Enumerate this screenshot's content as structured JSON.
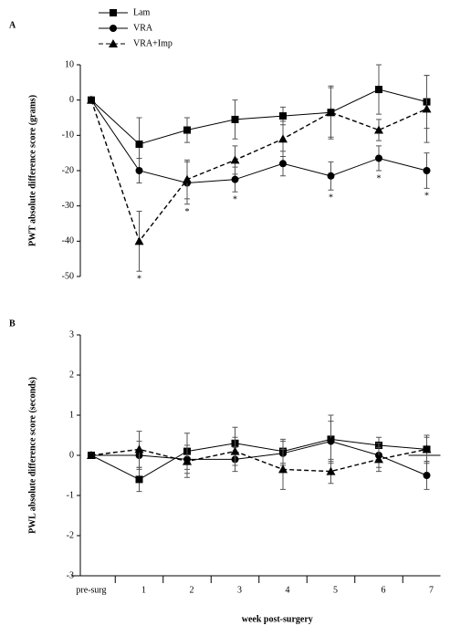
{
  "chart_data": [
    {
      "type": "line",
      "panel_label": "A",
      "y_label": "PWT absolute difference score (grams)",
      "ylim": [
        -50,
        10
      ],
      "yticks": [
        10,
        0,
        -10,
        -20,
        -30,
        -40,
        -50
      ],
      "legend": "top",
      "series": [
        {
          "name": "Lam",
          "color": "#000000",
          "marker": "square",
          "dash": false,
          "values": [
            0,
            -12.5,
            -8.5,
            -5.5,
            -4.5,
            -3.5,
            3,
            -0.5
          ],
          "errors": [
            0,
            7.5,
            3.5,
            5.5,
            2.5,
            7.5,
            7,
            7.5
          ]
        },
        {
          "name": "VRA",
          "color": "#000000",
          "marker": "circle",
          "dash": false,
          "values": [
            0,
            -20,
            -23.5,
            -22.5,
            -18,
            -21.5,
            -16.5,
            -20
          ],
          "errors": [
            0,
            3.5,
            6,
            3.5,
            3.5,
            4,
            3.5,
            5
          ]
        },
        {
          "name": "VRA+Imp",
          "color": "#000000",
          "marker": "triangle",
          "dash": true,
          "values": [
            0,
            -40,
            -22.5,
            -17,
            -11,
            -3.5,
            -8.5,
            -2.5
          ],
          "errors": [
            0,
            8.5,
            5.5,
            4,
            5,
            7,
            3,
            9.5
          ]
        }
      ],
      "annotations": [
        {
          "x": "1",
          "text": "*"
        },
        {
          "x": "2",
          "text": "*"
        },
        {
          "x": "3",
          "text": "*"
        },
        {
          "x": "5",
          "text": "*"
        },
        {
          "x": "6",
          "text": "*"
        },
        {
          "x": "7",
          "text": "*"
        }
      ]
    },
    {
      "type": "line",
      "panel_label": "B",
      "y_label": "PWL absolute difference score (seconds)",
      "x_label": "week post-surgery",
      "categories": [
        "pre-surg",
        "1",
        "2",
        "3",
        "4",
        "5",
        "6",
        "7"
      ],
      "ylim": [
        -3,
        3
      ],
      "yticks": [
        3,
        2,
        1,
        0,
        -1,
        -2,
        -3
      ],
      "series": [
        {
          "color": "#000000",
          "marker": "square",
          "dash": false,
          "values": [
            0,
            -0.6,
            0.1,
            0.3,
            0.1,
            0.4,
            0.25,
            0.15
          ],
          "errors": [
            0,
            0.3,
            0.45,
            0.4,
            0.3,
            0.6,
            0.2,
            0.35
          ]
        },
        {
          "color": "#000000",
          "marker": "circle",
          "dash": false,
          "values": [
            0,
            0,
            -0.1,
            -0.1,
            0.05,
            0.35,
            0,
            -0.5
          ],
          "errors": [
            0,
            0.35,
            0.35,
            0.3,
            0.3,
            0.5,
            0.3,
            0.35
          ]
        },
        {
          "color": "#000000",
          "marker": "triangle",
          "dash": true,
          "values": [
            0,
            0.15,
            -0.15,
            0.1,
            -0.35,
            -0.4,
            -0.1,
            0.15
          ],
          "errors": [
            0,
            0.45,
            0.4,
            0.35,
            0.5,
            0.3,
            0.3,
            0.3
          ]
        }
      ]
    }
  ]
}
